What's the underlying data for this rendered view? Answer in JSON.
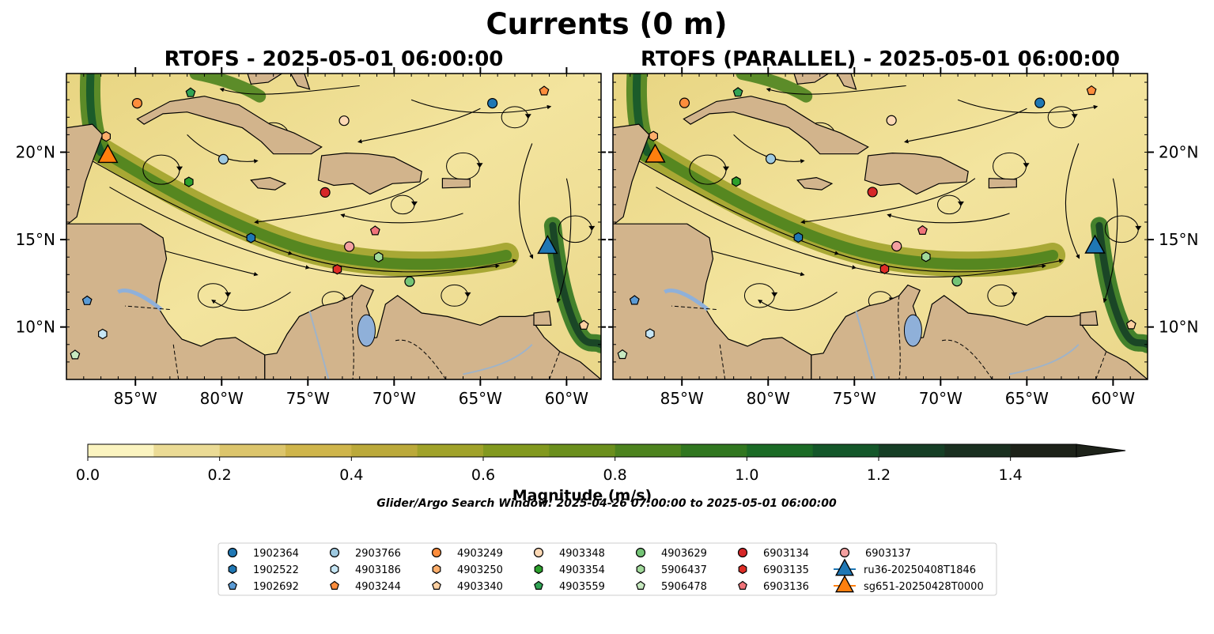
{
  "suptitle": "Currents (0 m)",
  "panels": [
    {
      "title": "RTOFS - 2025-05-01 06:00:00"
    },
    {
      "title": "RTOFS (PARALLEL) - 2025-05-01 06:00:00"
    }
  ],
  "map_extent": {
    "lon": [
      -89,
      -58
    ],
    "lat": [
      7,
      24.5
    ]
  },
  "lon_ticks": [
    {
      "value": -85,
      "label": "85°W"
    },
    {
      "value": -80,
      "label": "80°W"
    },
    {
      "value": -75,
      "label": "75°W"
    },
    {
      "value": -70,
      "label": "70°W"
    },
    {
      "value": -65,
      "label": "65°W"
    },
    {
      "value": -60,
      "label": "60°W"
    }
  ],
  "lat_ticks": [
    {
      "value": 10,
      "label": "10°N"
    },
    {
      "value": 15,
      "label": "15°N"
    },
    {
      "value": 20,
      "label": "20°N"
    }
  ],
  "colorbar": {
    "label": "Magnitude (m/s)",
    "min": 0,
    "max": 1.5,
    "step": 0.1,
    "extend": "max",
    "ticks": [
      "0.0",
      "0.2",
      "0.4",
      "0.6",
      "0.8",
      "1.0",
      "1.2",
      "1.4"
    ],
    "colors": [
      "#fbf4c0",
      "#ebdb95",
      "#dcc56c",
      "#cfb54b",
      "#bba93a",
      "#a0a22a",
      "#82991f",
      "#6b8f1d",
      "#4d831e",
      "#317720",
      "#1b6b26",
      "#14572a",
      "#163f26",
      "#1a3020",
      "#1d2219"
    ]
  },
  "search_window": "Glider/Argo Search Window: 2025-04-26 07:00:00 to 2025-05-01 06:00:00",
  "colors": {
    "land": "#d2b48c",
    "ocean_low": "#f5ea9e",
    "lake": "#8fb0d9",
    "river": "#9fb3c8"
  },
  "legend": [
    {
      "label": "1902364",
      "marker": "circle",
      "color": "#1f77b4"
    },
    {
      "label": "1902522",
      "marker": "hexagon",
      "color": "#1f77b4"
    },
    {
      "label": "1902692",
      "marker": "pentagon",
      "color": "#5b9bd5"
    },
    {
      "label": "2903766",
      "marker": "circle",
      "color": "#9ecae1"
    },
    {
      "label": "4903186",
      "marker": "hexagon",
      "color": "#c6e6f5"
    },
    {
      "label": "4903244",
      "marker": "pentagon",
      "color": "#fd8d3c"
    },
    {
      "label": "4903249",
      "marker": "circle",
      "color": "#fd8d3c"
    },
    {
      "label": "4903250",
      "marker": "hexagon",
      "color": "#fdae6b"
    },
    {
      "label": "4903340",
      "marker": "pentagon",
      "color": "#fdd0a2"
    },
    {
      "label": "4903348",
      "marker": "circle",
      "color": "#fdd9b5"
    },
    {
      "label": "4903354",
      "marker": "hexagon",
      "color": "#2ca02c"
    },
    {
      "label": "4903559",
      "marker": "pentagon",
      "color": "#31a354"
    },
    {
      "label": "4903629",
      "marker": "circle",
      "color": "#74c476"
    },
    {
      "label": "5906437",
      "marker": "hexagon",
      "color": "#a1d99b"
    },
    {
      "label": "5906478",
      "marker": "pentagon",
      "color": "#c7e9c0"
    },
    {
      "label": "6903134",
      "marker": "circle",
      "color": "#d62728"
    },
    {
      "label": "6903135",
      "marker": "hexagon",
      "color": "#de2d26"
    },
    {
      "label": "6903136",
      "marker": "pentagon",
      "color": "#f0747a"
    },
    {
      "label": "6903137",
      "marker": "circle",
      "color": "#f4a0a0"
    },
    {
      "label": "ru36-20250408T1846",
      "marker": "triangle-line",
      "color": "#1f77b4"
    },
    {
      "label": "sg651-20250428T0000",
      "marker": "triangle-line",
      "color": "#ff7f0e"
    }
  ],
  "floats": [
    {
      "id": "1902364",
      "lon": -64.3,
      "lat": 22.8
    },
    {
      "id": "1902522",
      "lon": -78.3,
      "lat": 15.1
    },
    {
      "id": "1902692",
      "lon": -87.8,
      "lat": 11.5
    },
    {
      "id": "2903766",
      "lon": -79.9,
      "lat": 19.6
    },
    {
      "id": "4903186",
      "lon": -86.9,
      "lat": 9.6
    },
    {
      "id": "4903244",
      "lon": -61.3,
      "lat": 23.5
    },
    {
      "id": "4903249",
      "lon": -84.9,
      "lat": 22.8
    },
    {
      "id": "4903250",
      "lon": -86.7,
      "lat": 20.9
    },
    {
      "id": "4903340",
      "lon": -59.0,
      "lat": 10.1
    },
    {
      "id": "4903348",
      "lon": -72.9,
      "lat": 21.8
    },
    {
      "id": "4903354",
      "lon": -81.9,
      "lat": 18.3
    },
    {
      "id": "4903559",
      "lon": -81.8,
      "lat": 23.4
    },
    {
      "id": "4903629",
      "lon": -69.1,
      "lat": 12.6
    },
    {
      "id": "5906437",
      "lon": -70.9,
      "lat": 14.0
    },
    {
      "id": "5906478",
      "lon": -88.5,
      "lat": 8.4
    },
    {
      "id": "6903134",
      "lon": -74.0,
      "lat": 17.7
    },
    {
      "id": "6903135",
      "lon": -73.3,
      "lat": 13.3
    },
    {
      "id": "6903136",
      "lon": -71.1,
      "lat": 15.5
    },
    {
      "id": "6903137",
      "lon": -72.6,
      "lat": 14.6
    },
    {
      "id": "ru36-20250408T1846",
      "lon": -61.1,
      "lat": 14.6
    },
    {
      "id": "sg651-20250428T0000",
      "lon": -86.6,
      "lat": 19.8
    }
  ]
}
